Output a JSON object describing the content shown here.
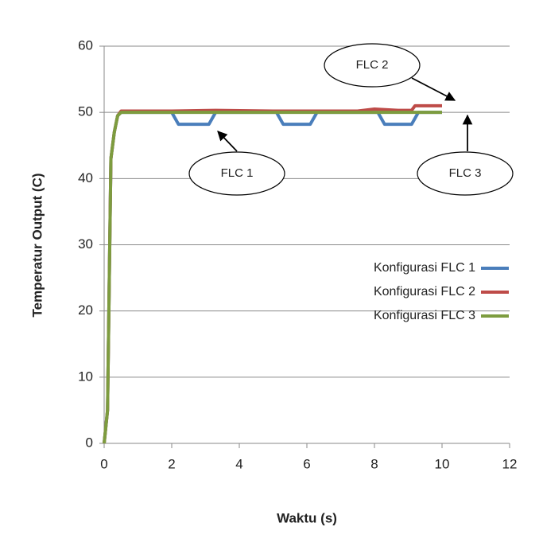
{
  "chart_data": {
    "type": "line",
    "xlabel": "Waktu (s)",
    "ylabel": "Temperatur Output (C)",
    "xlim": [
      0,
      12
    ],
    "xticks": [
      0,
      2,
      4,
      6,
      8,
      10,
      12
    ],
    "ylim": [
      0,
      60
    ],
    "yticks": [
      0,
      10,
      20,
      30,
      40,
      50,
      60
    ],
    "grid": true,
    "legend": "right",
    "series": [
      {
        "name": "Konfigurasi FLC 1",
        "color": "#4a7ebb",
        "x": [
          0,
          0.1,
          0.2,
          0.3,
          0.4,
          0.5,
          2.0,
          2.2,
          3.1,
          3.3,
          5.1,
          5.3,
          6.1,
          6.3,
          8.1,
          8.3,
          9.1,
          9.3,
          10
        ],
        "values": [
          0,
          5,
          43,
          47,
          49.5,
          50,
          50,
          48.2,
          48.2,
          50,
          50,
          48.2,
          48.2,
          50,
          50,
          48.2,
          48.2,
          50,
          50
        ]
      },
      {
        "name": "Konfigurasi FLC 2",
        "color": "#be4b48",
        "x": [
          0,
          0.1,
          0.2,
          0.3,
          0.4,
          0.5,
          2.0,
          3.3,
          5.0,
          7.5,
          8.0,
          8.7,
          9.1,
          9.2,
          10
        ],
        "values": [
          0,
          5,
          43,
          47,
          49.5,
          50.2,
          50.2,
          50.3,
          50.2,
          50.2,
          50.5,
          50.3,
          50.3,
          51,
          51
        ]
      },
      {
        "name": "Konfigurasi FLC 3",
        "color": "#7d9c3f",
        "x": [
          0,
          0.1,
          0.2,
          0.3,
          0.4,
          0.5,
          2.0,
          4.0,
          6.0,
          8.0,
          10
        ],
        "values": [
          0,
          5,
          43,
          47,
          49.5,
          50,
          50,
          50,
          50,
          50,
          50
        ]
      }
    ],
    "annotations": [
      "FLC 1",
      "FLC 2",
      "FLC 3"
    ]
  }
}
